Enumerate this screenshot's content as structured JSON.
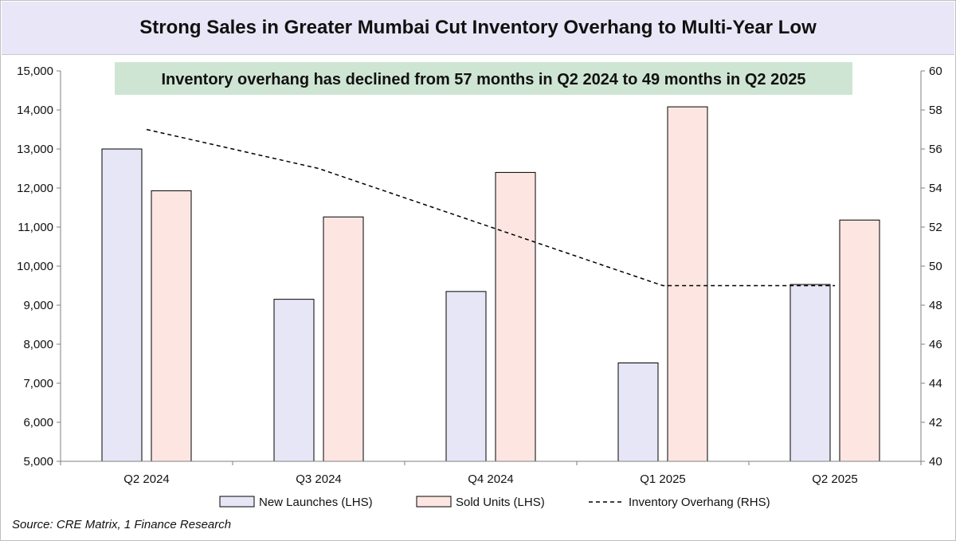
{
  "chart_data": {
    "type": "bar",
    "title": "Strong Sales in Greater Mumbai Cut Inventory Overhang to Multi-Year Low",
    "annotation": "Inventory overhang has declined from 57 months in Q2 2024 to 49 months in Q2 2025",
    "categories": [
      "Q2 2024",
      "Q3 2024",
      "Q4 2024",
      "Q1 2025",
      "Q2 2025"
    ],
    "series": [
      {
        "name": "New Launches (LHS)",
        "type": "bar",
        "axis": "left",
        "color": "#e6e6f7",
        "values": [
          13000,
          9150,
          9350,
          7520,
          9530
        ]
      },
      {
        "name": "Sold Units (LHS)",
        "type": "bar",
        "axis": "left",
        "color": "#fde6e2",
        "values": [
          11930,
          11260,
          12400,
          14080,
          11180
        ]
      },
      {
        "name": "Inventory Overhang (RHS)",
        "type": "line",
        "axis": "right",
        "style": "dashed",
        "color": "#000000",
        "values": [
          57,
          55,
          52,
          49,
          49
        ]
      }
    ],
    "left_axis": {
      "min": 5000,
      "max": 15000,
      "step": 1000,
      "tick_labels": [
        "5,000",
        "6,000",
        "7,000",
        "8,000",
        "9,000",
        "10,000",
        "11,000",
        "12,000",
        "13,000",
        "14,000",
        "15,000"
      ]
    },
    "right_axis": {
      "min": 40,
      "max": 60,
      "step": 2,
      "tick_labels": [
        "40",
        "42",
        "44",
        "46",
        "48",
        "50",
        "52",
        "54",
        "56",
        "58",
        "60"
      ]
    },
    "grid": false,
    "legend_placement": "bottom",
    "annotation_color": "#cfe5d3"
  },
  "source": "Source: CRE Matrix, 1 Finance Research"
}
